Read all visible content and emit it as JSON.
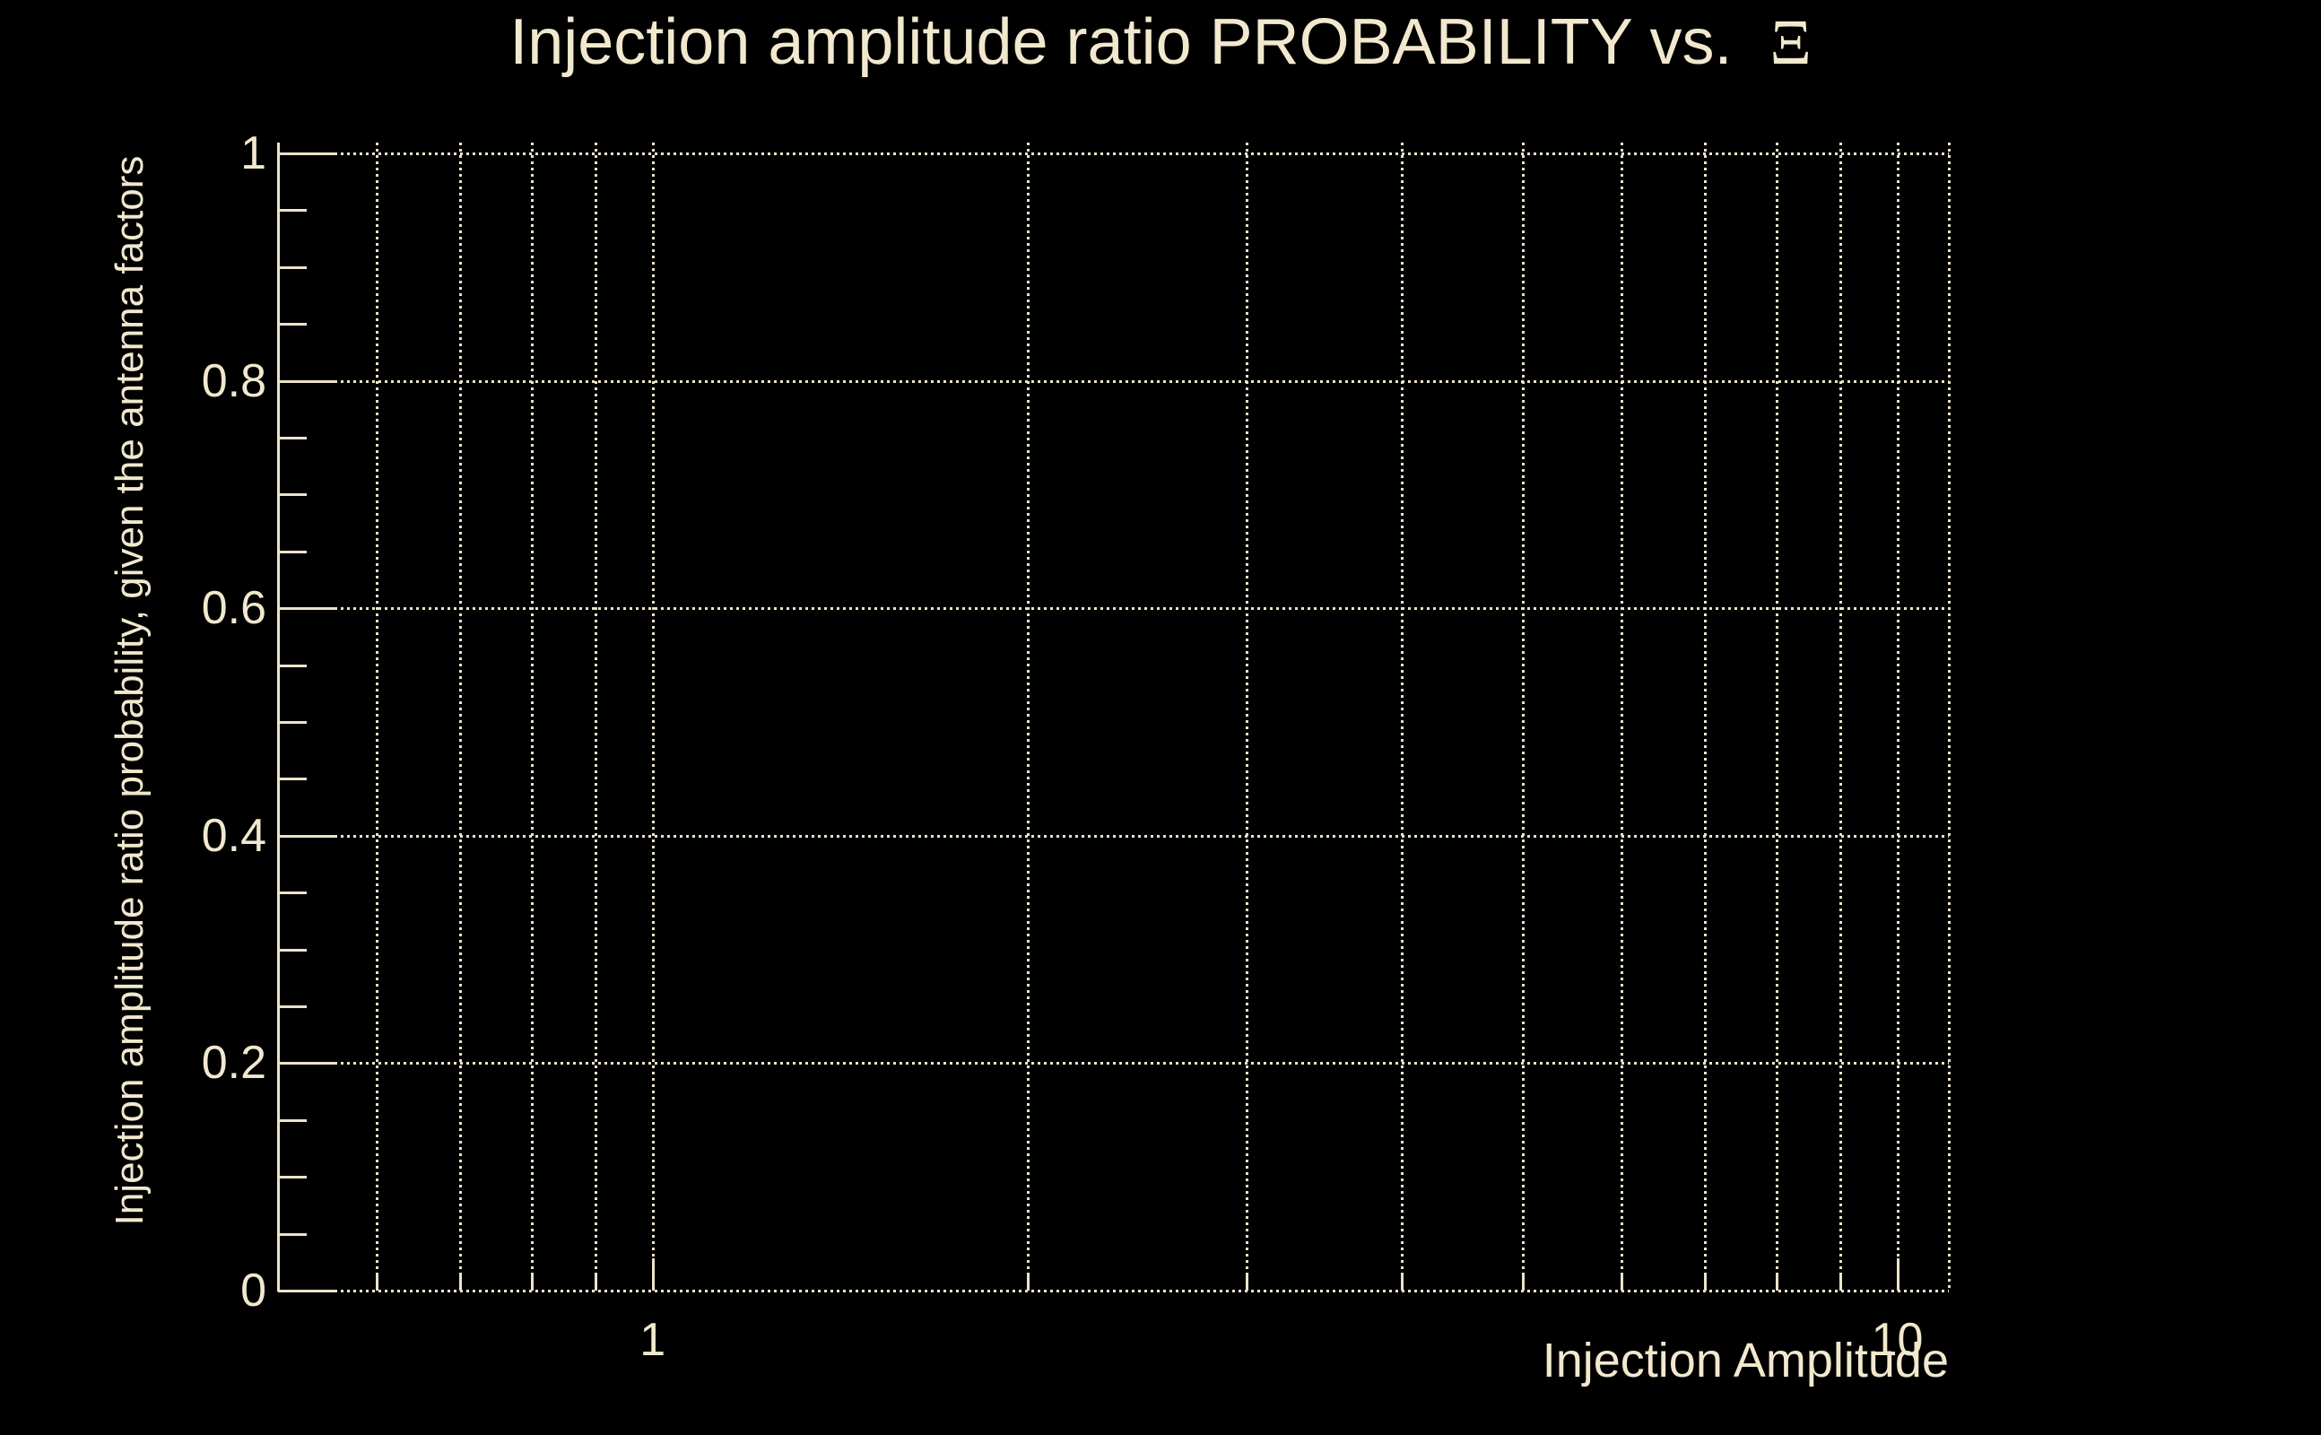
{
  "title": {
    "text": "Injection amplitude ratio PROBABILITY vs.",
    "symbol": "Ξ"
  },
  "chart_data": {
    "type": "line",
    "title": "Injection amplitude ratio PROBABILITY vs. Ξ",
    "xlabel": "Injection Amplitude",
    "ylabel": "Injection amplitude ratio probability, given the antenna factors",
    "x_axis": {
      "scale": "log",
      "range": [
        0.5,
        11
      ],
      "major_ticks": [
        1,
        10
      ],
      "major_tick_labels": [
        "1",
        "10"
      ],
      "minor_ticks": [
        0.6,
        0.7,
        0.8,
        0.9,
        2,
        3,
        4,
        5,
        6,
        7,
        8,
        9
      ],
      "edge_gridlines": [
        11
      ]
    },
    "y_axis": {
      "scale": "linear",
      "range": [
        0,
        1
      ],
      "major_ticks": [
        0,
        0.2,
        0.4,
        0.6,
        0.8,
        1
      ],
      "major_tick_labels": [
        "0",
        "0.2",
        "0.4",
        "0.6",
        "0.8",
        "1"
      ],
      "minor_tick_step": 0.05
    },
    "grid": {
      "shown": true,
      "style": "dotted"
    },
    "series": []
  },
  "colors": {
    "background": "#000000",
    "text": "#f1e8ce",
    "grid": "#ece3c8"
  }
}
